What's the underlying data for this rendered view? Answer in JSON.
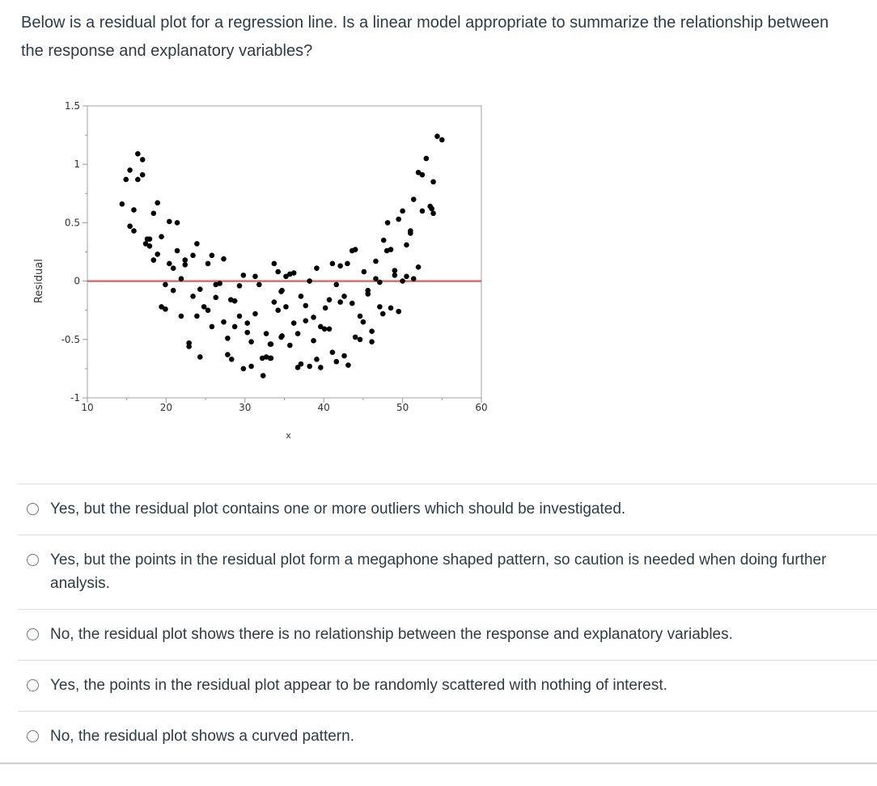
{
  "question": {
    "text": "Below is a residual plot for a regression line. Is a linear model appropriate to summarize the relationship between the response and explanatory variables?"
  },
  "chart_data": {
    "type": "scatter",
    "xlabel": "x",
    "ylabel": "Residual",
    "xlim": [
      10,
      60
    ],
    "ylim": [
      -1,
      1.5
    ],
    "x_ticks": [
      "10",
      "20",
      "30",
      "40",
      "50",
      "60"
    ],
    "y_ticks": [
      "1.5",
      "1",
      "0.5",
      "0",
      "-0.5",
      "-1"
    ],
    "reference_line": {
      "y": 0,
      "color": "#c0504d"
    },
    "point_color": "#000000",
    "points": [
      [
        16.4,
        1.09
      ],
      [
        17.0,
        1.04
      ],
      [
        15.4,
        0.95
      ],
      [
        14.9,
        0.87
      ],
      [
        16.4,
        0.87
      ],
      [
        17.0,
        0.91
      ],
      [
        14.4,
        0.66
      ],
      [
        15.9,
        0.61
      ],
      [
        18.9,
        0.67
      ],
      [
        18.4,
        0.58
      ],
      [
        15.4,
        0.47
      ],
      [
        15.9,
        0.43
      ],
      [
        20.4,
        0.51
      ],
      [
        21.4,
        0.5
      ],
      [
        17.6,
        0.36
      ],
      [
        17.9,
        0.36
      ],
      [
        17.4,
        0.32
      ],
      [
        17.9,
        0.3
      ],
      [
        19.4,
        0.38
      ],
      [
        18.9,
        0.23
      ],
      [
        18.4,
        0.18
      ],
      [
        21.4,
        0.26
      ],
      [
        20.4,
        0.15
      ],
      [
        20.9,
        0.11
      ],
      [
        22.4,
        0.18
      ],
      [
        22.4,
        0.14
      ],
      [
        23.9,
        0.32
      ],
      [
        23.4,
        0.22
      ],
      [
        25.3,
        0.15
      ],
      [
        25.8,
        0.22
      ],
      [
        27.3,
        0.19
      ],
      [
        21.9,
        0.02
      ],
      [
        19.9,
        -0.03
      ],
      [
        20.9,
        -0.08
      ],
      [
        19.4,
        -0.22
      ],
      [
        19.9,
        -0.24
      ],
      [
        21.9,
        -0.3
      ],
      [
        23.4,
        -0.13
      ],
      [
        24.3,
        -0.07
      ],
      [
        24.8,
        -0.22
      ],
      [
        25.3,
        -0.25
      ],
      [
        23.9,
        -0.3
      ],
      [
        22.9,
        -0.53
      ],
      [
        22.9,
        -0.56
      ],
      [
        24.3,
        -0.65
      ],
      [
        26.3,
        -0.03
      ],
      [
        26.8,
        -0.02
      ],
      [
        26.3,
        -0.14
      ],
      [
        27.3,
        -0.35
      ],
      [
        25.8,
        -0.39
      ],
      [
        27.8,
        -0.49
      ],
      [
        27.8,
        -0.63
      ],
      [
        28.3,
        -0.67
      ],
      [
        28.2,
        -0.16
      ],
      [
        28.7,
        -0.17
      ],
      [
        29.3,
        -0.04
      ],
      [
        29.8,
        0.05
      ],
      [
        31.3,
        0.04
      ],
      [
        31.8,
        -0.03
      ],
      [
        29.3,
        -0.3
      ],
      [
        28.7,
        -0.39
      ],
      [
        30.3,
        -0.36
      ],
      [
        31.3,
        -0.28
      ],
      [
        30.3,
        -0.44
      ],
      [
        30.8,
        -0.52
      ],
      [
        29.8,
        -0.75
      ],
      [
        30.8,
        -0.73
      ],
      [
        32.3,
        -0.81
      ],
      [
        32.2,
        -0.66
      ],
      [
        32.7,
        -0.65
      ],
      [
        33.2,
        -0.66
      ],
      [
        32.7,
        -0.45
      ],
      [
        33.2,
        -0.54
      ],
      [
        33.7,
        0.15
      ],
      [
        34.2,
        0.08
      ],
      [
        34.6,
        -0.09
      ],
      [
        33.7,
        -0.18
      ],
      [
        34.2,
        -0.25
      ],
      [
        34.6,
        -0.48
      ],
      [
        54.4,
        1.24
      ],
      [
        55.0,
        1.21
      ],
      [
        53.0,
        1.05
      ],
      [
        52.0,
        0.93
      ],
      [
        52.5,
        0.91
      ],
      [
        53.9,
        0.85
      ],
      [
        51.4,
        0.7
      ],
      [
        53.5,
        0.64
      ],
      [
        53.7,
        0.62
      ],
      [
        53.9,
        0.58
      ],
      [
        52.5,
        0.6
      ],
      [
        50.0,
        0.6
      ],
      [
        49.5,
        0.53
      ],
      [
        48.1,
        0.5
      ],
      [
        51.0,
        0.43
      ],
      [
        51.0,
        0.41
      ],
      [
        47.6,
        0.35
      ],
      [
        48.0,
        0.26
      ],
      [
        48.5,
        0.27
      ],
      [
        50.5,
        0.31
      ],
      [
        43.6,
        0.26
      ],
      [
        44.0,
        0.27
      ],
      [
        46.6,
        0.17
      ],
      [
        49.0,
        0.09
      ],
      [
        49.0,
        0.05
      ],
      [
        50.5,
        0.04
      ],
      [
        51.4,
        0.02
      ],
      [
        52.0,
        0.12
      ],
      [
        50.0,
        0.0
      ],
      [
        41.1,
        0.15
      ],
      [
        42.1,
        0.13
      ],
      [
        43.0,
        0.15
      ],
      [
        39.1,
        0.11
      ],
      [
        45.1,
        0.08
      ],
      [
        46.6,
        0.02
      ],
      [
        47.1,
        -0.01
      ],
      [
        38.2,
        0.0
      ],
      [
        41.6,
        -0.03
      ],
      [
        35.2,
        0.04
      ],
      [
        35.7,
        0.06
      ],
      [
        36.2,
        0.07
      ],
      [
        34.7,
        -0.08
      ],
      [
        35.2,
        -0.22
      ],
      [
        37.1,
        -0.13
      ],
      [
        37.7,
        -0.21
      ],
      [
        40.7,
        -0.16
      ],
      [
        40.2,
        -0.23
      ],
      [
        42.1,
        -0.18
      ],
      [
        42.6,
        -0.13
      ],
      [
        43.6,
        -0.19
      ],
      [
        45.6,
        -0.08
      ],
      [
        45.6,
        -0.11
      ],
      [
        47.1,
        -0.22
      ],
      [
        47.5,
        -0.28
      ],
      [
        48.5,
        -0.23
      ],
      [
        49.5,
        -0.26
      ],
      [
        36.2,
        -0.36
      ],
      [
        37.7,
        -0.34
      ],
      [
        38.7,
        -0.31
      ],
      [
        39.6,
        -0.39
      ],
      [
        40.1,
        -0.41
      ],
      [
        40.7,
        -0.41
      ],
      [
        44.6,
        -0.3
      ],
      [
        45.0,
        -0.35
      ],
      [
        34.7,
        -0.47
      ],
      [
        36.7,
        -0.45
      ],
      [
        33.3,
        -0.54
      ],
      [
        35.7,
        -0.55
      ],
      [
        38.7,
        -0.51
      ],
      [
        44.0,
        -0.48
      ],
      [
        44.6,
        -0.5
      ],
      [
        46.1,
        -0.43
      ],
      [
        46.1,
        -0.52
      ],
      [
        33.3,
        -0.66
      ],
      [
        41.1,
        -0.61
      ],
      [
        41.6,
        -0.69
      ],
      [
        42.6,
        -0.64
      ],
      [
        43.1,
        -0.72
      ],
      [
        39.1,
        -0.67
      ],
      [
        38.2,
        -0.73
      ],
      [
        39.6,
        -0.74
      ],
      [
        36.7,
        -0.74
      ],
      [
        37.1,
        -0.71
      ]
    ]
  },
  "answers": [
    {
      "label": "Yes, but the residual plot contains one or more outliers which should be investigated.",
      "selected": false
    },
    {
      "label": "Yes, but the points in the residual plot form a megaphone shaped pattern, so caution is needed when doing further analysis.",
      "selected": false
    },
    {
      "label": "No, the residual plot shows there is no relationship between the response and explanatory variables.",
      "selected": false
    },
    {
      "label": "Yes, the points in the residual plot appear to be randomly scattered with nothing of interest.",
      "selected": false
    },
    {
      "label": "No, the residual plot shows a curved pattern.",
      "selected": false
    }
  ]
}
